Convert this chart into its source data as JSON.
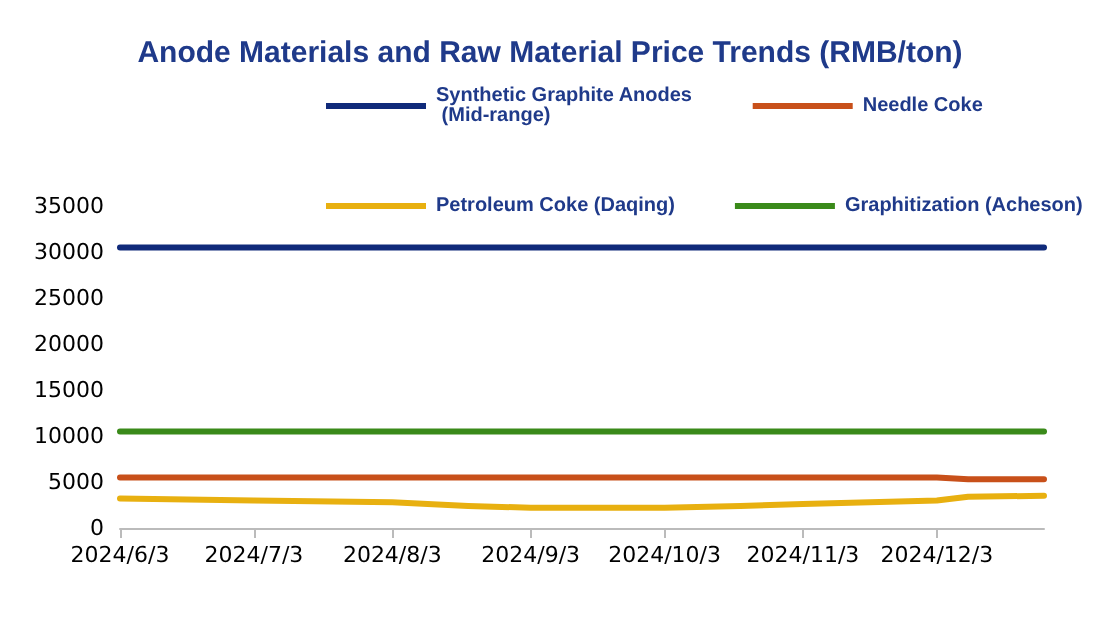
{
  "chart_data": {
    "type": "line",
    "title": "Anode Materials and Raw Material Price Trends (RMB/ton)",
    "x": [
      "2024-06-03",
      "2024-07-03",
      "2024-08-03",
      "2024-08-20",
      "2024-09-03",
      "2024-10-03",
      "2024-10-20",
      "2024-11-03",
      "2024-12-03",
      "2024-12-10",
      "2024-12-27"
    ],
    "series": [
      {
        "name": "Synthetic Graphite Anodes (Mid-range)",
        "color": "#102a7a",
        "values": [
          30500,
          30500,
          30500,
          30500,
          30500,
          30500,
          30500,
          30500,
          30500,
          30500,
          30500
        ]
      },
      {
        "name": "Needle Coke",
        "color": "#c8501a",
        "values": [
          5500,
          5500,
          5500,
          5500,
          5500,
          5500,
          5500,
          5500,
          5500,
          5300,
          5300
        ]
      },
      {
        "name": "Petroleum Coke (Daqing)",
        "color": "#e8b010",
        "values": [
          3200,
          3000,
          2800,
          2400,
          2200,
          2200,
          2400,
          2600,
          3000,
          3400,
          3500
        ]
      },
      {
        "name": "Graphitization (Acheson)",
        "color": "#3a8a1a",
        "values": [
          10500,
          10500,
          10500,
          10500,
          10500,
          10500,
          10500,
          10500,
          10500,
          10500,
          10500
        ]
      }
    ],
    "xlim": [
      "2024-06-03",
      "2024-12-27"
    ],
    "xticks": [
      {
        "value": "2024-06-03",
        "label": "2024/6/3"
      },
      {
        "value": "2024-07-03",
        "label": "2024/7/3"
      },
      {
        "value": "2024-08-03",
        "label": "2024/8/3"
      },
      {
        "value": "2024-09-03",
        "label": "2024/9/3"
      },
      {
        "value": "2024-10-03",
        "label": "2024/10/3"
      },
      {
        "value": "2024-11-03",
        "label": "2024/11/3"
      },
      {
        "value": "2024-12-03",
        "label": "2024/12/3"
      }
    ],
    "ylim": [
      0,
      35000
    ],
    "yticks": [
      0,
      5000,
      10000,
      15000,
      20000,
      25000,
      30000,
      35000
    ],
    "grid": false,
    "legend": "top",
    "marker": "none",
    "line_style": "solid"
  }
}
